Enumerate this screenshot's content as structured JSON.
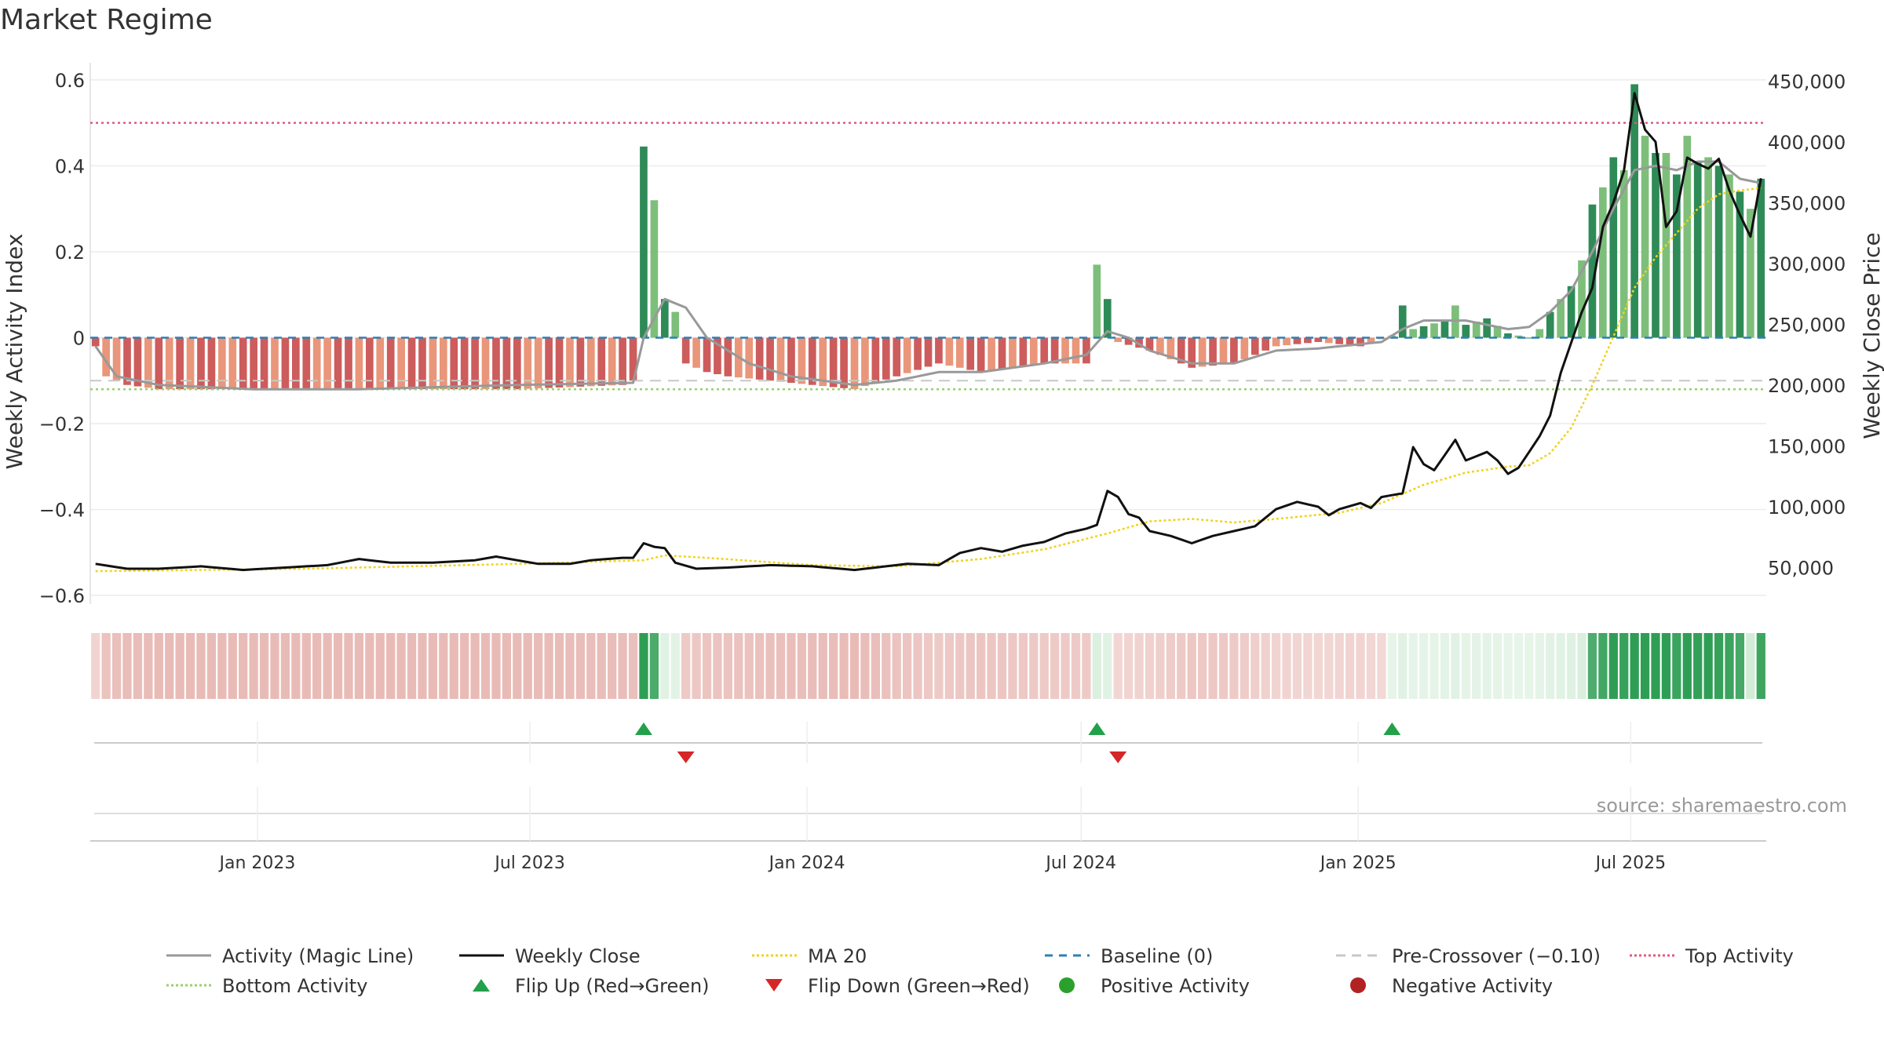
{
  "chart_data": {
    "type": "bar",
    "title": "Market Regime",
    "ylabel_left": "Weekly Activity Index",
    "ylabel_right": "Weekly Close Price",
    "ylim_left": [
      -0.62,
      0.64
    ],
    "ylim_right": [
      20000,
      465000
    ],
    "yticks_left": [
      0.6,
      0.4,
      0.2,
      0,
      -0.2,
      -0.4,
      -0.6
    ],
    "ytick_labels_left": [
      "0.6",
      "0.4",
      "0.2",
      "0",
      "−0.2",
      "−0.4",
      "−0.6"
    ],
    "yticks_right": [
      450000,
      400000,
      350000,
      300000,
      250000,
      200000,
      150000,
      100000,
      50000
    ],
    "ytick_labels_right": [
      "450,000",
      "400,000",
      "350,000",
      "300,000",
      "250,000",
      "200,000",
      "150,000",
      "100,000",
      "50,000"
    ],
    "x_start": "2022-09-12",
    "week_count": 159,
    "xticks": [
      {
        "date": "2023-01-01",
        "label": "Jan 2023"
      },
      {
        "date": "2023-07-01",
        "label": "Jul 2023"
      },
      {
        "date": "2024-01-01",
        "label": "Jan 2024"
      },
      {
        "date": "2024-07-01",
        "label": "Jul 2024"
      },
      {
        "date": "2025-01-01",
        "label": "Jan 2025"
      },
      {
        "date": "2025-07-01",
        "label": "Jul 2025"
      }
    ],
    "reference_lines": {
      "baseline": 0,
      "pre_crossover": -0.1,
      "top_activity": 0.5,
      "bottom_activity": -0.12
    },
    "activity_keypoints": [
      [
        0,
        -0.02
      ],
      [
        1,
        -0.09
      ],
      [
        3,
        -0.11
      ],
      [
        6,
        -0.12
      ],
      [
        20,
        -0.12
      ],
      [
        40,
        -0.12
      ],
      [
        50,
        -0.11
      ],
      [
        51,
        -0.1
      ],
      [
        52,
        0.445
      ],
      [
        53,
        0.32
      ],
      [
        54,
        0.09
      ],
      [
        55,
        0.06
      ],
      [
        56,
        -0.06
      ],
      [
        58,
        -0.08
      ],
      [
        60,
        -0.09
      ],
      [
        64,
        -0.1
      ],
      [
        72,
        -0.12
      ],
      [
        76,
        -0.09
      ],
      [
        80,
        -0.06
      ],
      [
        84,
        -0.08
      ],
      [
        90,
        -0.06
      ],
      [
        94,
        -0.06
      ],
      [
        95,
        0.17
      ],
      [
        96,
        0.09
      ],
      [
        97,
        -0.01
      ],
      [
        100,
        -0.03
      ],
      [
        104,
        -0.07
      ],
      [
        108,
        -0.06
      ],
      [
        112,
        -0.02
      ],
      [
        116,
        -0.01
      ],
      [
        120,
        -0.02
      ],
      [
        123,
        0.005
      ],
      [
        124,
        0.075
      ],
      [
        125,
        0.02
      ],
      [
        128,
        0.04
      ],
      [
        129,
        0.075
      ],
      [
        130,
        0.03
      ],
      [
        132,
        0.045
      ],
      [
        134,
        0.01
      ],
      [
        136,
        0.0
      ],
      [
        137,
        0.02
      ],
      [
        138,
        0.06
      ],
      [
        139,
        0.09
      ],
      [
        140,
        0.12
      ],
      [
        141,
        0.18
      ],
      [
        142,
        0.31
      ],
      [
        143,
        0.35
      ],
      [
        144,
        0.42
      ],
      [
        145,
        0.39
      ],
      [
        146,
        0.59
      ],
      [
        147,
        0.47
      ],
      [
        148,
        0.43
      ],
      [
        149,
        0.43
      ],
      [
        150,
        0.38
      ],
      [
        151,
        0.47
      ],
      [
        152,
        0.41
      ],
      [
        153,
        0.42
      ],
      [
        154,
        0.4
      ],
      [
        155,
        0.38
      ],
      [
        156,
        0.34
      ],
      [
        157,
        0.3
      ],
      [
        158,
        0.37
      ]
    ],
    "magic_keypoints": [
      [
        0,
        -0.02
      ],
      [
        2,
        -0.09
      ],
      [
        6,
        -0.11
      ],
      [
        15,
        -0.12
      ],
      [
        25,
        -0.12
      ],
      [
        40,
        -0.11
      ],
      [
        51,
        -0.105
      ],
      [
        52,
        0.0
      ],
      [
        54,
        0.09
      ],
      [
        56,
        0.07
      ],
      [
        58,
        0.0
      ],
      [
        62,
        -0.06
      ],
      [
        66,
        -0.09
      ],
      [
        72,
        -0.11
      ],
      [
        76,
        -0.1
      ],
      [
        80,
        -0.08
      ],
      [
        84,
        -0.08
      ],
      [
        90,
        -0.06
      ],
      [
        94,
        -0.04
      ],
      [
        96,
        0.015
      ],
      [
        98,
        0.0
      ],
      [
        100,
        -0.03
      ],
      [
        104,
        -0.06
      ],
      [
        108,
        -0.06
      ],
      [
        112,
        -0.03
      ],
      [
        116,
        -0.025
      ],
      [
        122,
        -0.01
      ],
      [
        124,
        0.02
      ],
      [
        126,
        0.04
      ],
      [
        130,
        0.04
      ],
      [
        134,
        0.02
      ],
      [
        136,
        0.025
      ],
      [
        138,
        0.06
      ],
      [
        140,
        0.11
      ],
      [
        142,
        0.2
      ],
      [
        144,
        0.3
      ],
      [
        146,
        0.39
      ],
      [
        148,
        0.4
      ],
      [
        150,
        0.39
      ],
      [
        152,
        0.41
      ],
      [
        154,
        0.41
      ],
      [
        156,
        0.37
      ],
      [
        158,
        0.36
      ]
    ],
    "close_keypoints": [
      [
        0,
        53000
      ],
      [
        3,
        49000
      ],
      [
        6,
        49000
      ],
      [
        10,
        51000
      ],
      [
        14,
        48000
      ],
      [
        18,
        50000
      ],
      [
        22,
        52000
      ],
      [
        25,
        57000
      ],
      [
        28,
        54000
      ],
      [
        32,
        54000
      ],
      [
        36,
        56000
      ],
      [
        38,
        59000
      ],
      [
        42,
        53000
      ],
      [
        45,
        53000
      ],
      [
        47,
        56000
      ],
      [
        50,
        58000
      ],
      [
        51,
        58000
      ],
      [
        52,
        70000
      ],
      [
        53,
        67000
      ],
      [
        54,
        66000
      ],
      [
        55,
        54000
      ],
      [
        57,
        49000
      ],
      [
        60,
        50000
      ],
      [
        64,
        52000
      ],
      [
        68,
        51000
      ],
      [
        72,
        48000
      ],
      [
        74,
        50000
      ],
      [
        77,
        53000
      ],
      [
        80,
        52000
      ],
      [
        82,
        62000
      ],
      [
        84,
        66000
      ],
      [
        86,
        63000
      ],
      [
        88,
        68000
      ],
      [
        90,
        71000
      ],
      [
        92,
        78000
      ],
      [
        94,
        82000
      ],
      [
        95,
        85000
      ],
      [
        96,
        113000
      ],
      [
        97,
        108000
      ],
      [
        98,
        94000
      ],
      [
        99,
        91000
      ],
      [
        100,
        80000
      ],
      [
        102,
        76000
      ],
      [
        104,
        70000
      ],
      [
        106,
        76000
      ],
      [
        108,
        80000
      ],
      [
        110,
        84000
      ],
      [
        112,
        98000
      ],
      [
        114,
        104000
      ],
      [
        116,
        100000
      ],
      [
        117,
        93000
      ],
      [
        118,
        98000
      ],
      [
        120,
        103000
      ],
      [
        121,
        99000
      ],
      [
        122,
        108000
      ],
      [
        124,
        111000
      ],
      [
        125,
        149000
      ],
      [
        126,
        135000
      ],
      [
        127,
        130000
      ],
      [
        129,
        155000
      ],
      [
        130,
        138000
      ],
      [
        132,
        145000
      ],
      [
        133,
        138000
      ],
      [
        134,
        127000
      ],
      [
        135,
        132000
      ],
      [
        136,
        145000
      ],
      [
        137,
        158000
      ],
      [
        138,
        175000
      ],
      [
        139,
        210000
      ],
      [
        140,
        235000
      ],
      [
        141,
        260000
      ],
      [
        142,
        280000
      ],
      [
        143,
        330000
      ],
      [
        144,
        350000
      ],
      [
        145,
        376000
      ],
      [
        146,
        440000
      ],
      [
        147,
        410000
      ],
      [
        148,
        400000
      ],
      [
        149,
        330000
      ],
      [
        150,
        343000
      ],
      [
        151,
        387000
      ],
      [
        152,
        382000
      ],
      [
        153,
        378000
      ],
      [
        154,
        386000
      ],
      [
        155,
        360000
      ],
      [
        156,
        340000
      ],
      [
        157,
        322000
      ],
      [
        158,
        370000
      ]
    ],
    "ma20_keypoints": [
      [
        0,
        47000
      ],
      [
        20,
        49000
      ],
      [
        40,
        53000
      ],
      [
        52,
        56000
      ],
      [
        54,
        60000
      ],
      [
        58,
        58000
      ],
      [
        68,
        52000
      ],
      [
        76,
        51000
      ],
      [
        84,
        57000
      ],
      [
        90,
        65000
      ],
      [
        96,
        78000
      ],
      [
        100,
        88000
      ],
      [
        104,
        90000
      ],
      [
        108,
        87000
      ],
      [
        112,
        90000
      ],
      [
        118,
        95000
      ],
      [
        122,
        103000
      ],
      [
        126,
        118000
      ],
      [
        130,
        128000
      ],
      [
        134,
        133000
      ],
      [
        136,
        134000
      ],
      [
        138,
        144000
      ],
      [
        140,
        165000
      ],
      [
        142,
        200000
      ],
      [
        144,
        240000
      ],
      [
        146,
        280000
      ],
      [
        148,
        305000
      ],
      [
        150,
        325000
      ],
      [
        152,
        345000
      ],
      [
        154,
        357000
      ],
      [
        156,
        360000
      ],
      [
        158,
        362000
      ]
    ],
    "regime_strip_weeks": 159,
    "flips": [
      {
        "type": "up",
        "week": 52
      },
      {
        "type": "down",
        "week": 56
      },
      {
        "type": "up",
        "week": 95
      },
      {
        "type": "down",
        "week": 97
      },
      {
        "type": "up",
        "week": 123
      }
    ],
    "legend": [
      {
        "label": "Activity (Magic Line)",
        "kind": "line",
        "color": "#999999",
        "dash": ""
      },
      {
        "label": "Weekly Close",
        "kind": "line",
        "color": "#111111",
        "dash": ""
      },
      {
        "label": "MA 20",
        "kind": "line",
        "color": "#f2d21b",
        "dash": "3,3"
      },
      {
        "label": "Baseline (0)",
        "kind": "line",
        "color": "#2f7fb5",
        "dash": "10,8"
      },
      {
        "label": "Pre-Crossover (−0.10)",
        "kind": "line",
        "color": "#c8c8c8",
        "dash": "12,8"
      },
      {
        "label": "Top Activity",
        "kind": "line",
        "color": "#e05a7d",
        "dash": "3,3"
      },
      {
        "label": "Bottom Activity",
        "kind": "line",
        "color": "#9bcf6e",
        "dash": "3,3"
      },
      {
        "label": "Flip Up (Red→Green)",
        "kind": "triangle-up",
        "color": "#23a04a",
        "dash": ""
      },
      {
        "label": "Flip Down (Green→Red)",
        "kind": "triangle-down",
        "color": "#d62728",
        "dash": ""
      },
      {
        "label": "Positive Activity",
        "kind": "dot",
        "color": "#2ca02c",
        "dash": ""
      },
      {
        "label": "Negative Activity",
        "kind": "dot",
        "color": "#b22222",
        "dash": ""
      }
    ],
    "source_text": "source: sharemaestro.com",
    "colors": {
      "pos_strong": "#2e8b57",
      "pos_light": "#7dbf7a",
      "neg_strong": "#cd5c5c",
      "neg_light": "#e9967a",
      "close": "#111111",
      "magic": "#999999",
      "ma20": "#f2d21b",
      "baseline": "#2f7fb5",
      "pre": "#c8c8c8",
      "top": "#e05a7d",
      "bottom": "#9bcf6e",
      "flip_up": "#23a04a",
      "flip_down": "#d62728",
      "strip_neg": "#e8b9b5",
      "strip_pos_low": "#c9e8cf",
      "strip_pos_high": "#2f9e55"
    }
  }
}
